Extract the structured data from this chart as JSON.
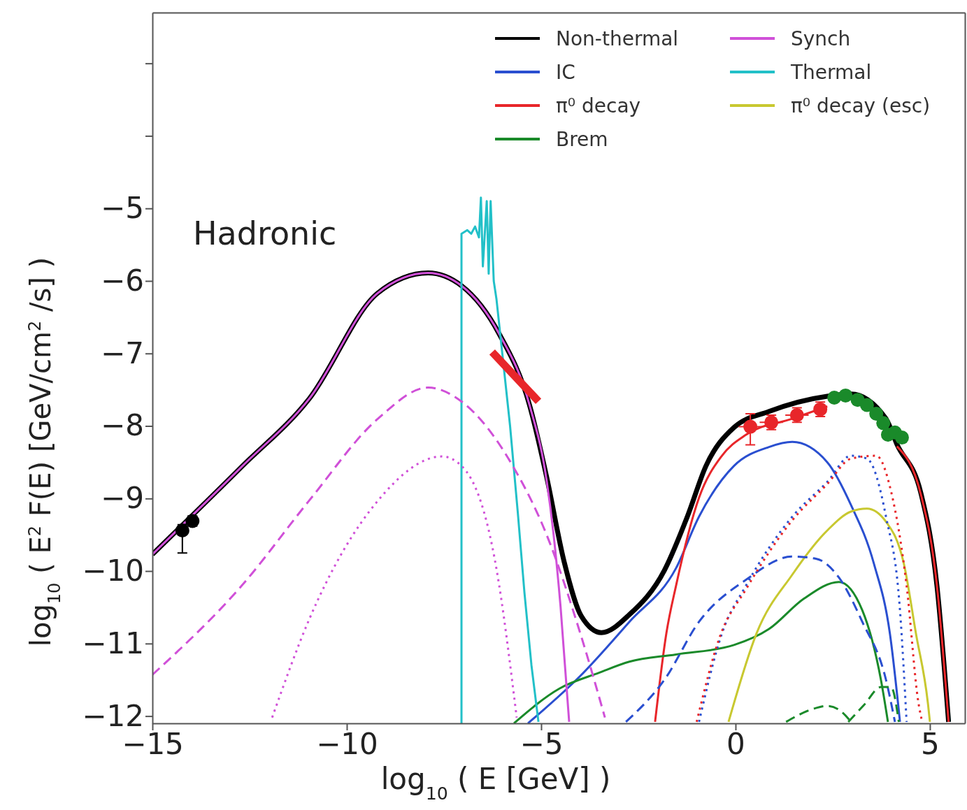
{
  "chart_data": {
    "type": "line",
    "xlabel": "log$_{10}$ ( E [GeV] )",
    "ylabel": "log$_{10}$ ( E$^{2}$ F(E) [GeV/cm$^{2}$ /s] )",
    "annotations": [
      "Hadronic"
    ],
    "xlim": [
      -15,
      5.9
    ],
    "ylim": [
      -12.1,
      -2.3
    ],
    "xticks": [
      -15,
      -10,
      -5,
      0,
      5
    ],
    "yticks": [
      -12,
      -11,
      -10,
      -9,
      -8,
      -7,
      -6,
      -5,
      {
        "value": -4,
        "label": null
      },
      {
        "value": -3,
        "label": null
      }
    ],
    "grid": false,
    "legend": "top right",
    "marker": "none",
    "line_style": "solid",
    "series": [
      {
        "name": "Non-thermal",
        "color": "#000000",
        "x": [
          -15,
          -12.7,
          -10.96,
          -9.21,
          -7.91,
          -7.04,
          -6.08,
          -5.3,
          -4.86,
          -4.41,
          -3.97,
          -3.45,
          -2.73,
          -1.83,
          -1.24,
          -0.76,
          -0.04,
          0.86,
          2.36,
          2.97,
          3.87,
          4.15,
          4.77,
          5.18,
          5.48
        ],
        "values": [
          -9.77,
          -8.56,
          -7.62,
          -6.17,
          -5.89,
          -6.07,
          -6.73,
          -7.71,
          -8.7,
          -9.87,
          -10.62,
          -10.85,
          -10.6,
          -9.99,
          -9.25,
          -8.55,
          -8.02,
          -7.8,
          -7.59,
          -7.56,
          -7.9,
          -8.25,
          -8.93,
          -10.2,
          -12.08
        ]
      },
      {
        "name": "IC",
        "color": "#2a4fd0",
        "x": [
          -5.34,
          -4,
          -2.73,
          -1.53,
          -0.94,
          -0.04,
          0.86,
          1.46,
          2.36,
          2.97,
          3.56,
          3.97,
          4.23
        ],
        "values": [
          -12.1,
          -11.45,
          -10.7,
          -9.96,
          -9.25,
          -8.55,
          -8.29,
          -8.22,
          -8.5,
          -9.09,
          -9.9,
          -10.86,
          -12.08
        ]
      },
      {
        "name": "π⁰ decay",
        "color": "#e8262a",
        "x": [
          -2.07,
          -1.78,
          -1.53,
          -0.94,
          -0.35,
          0.27,
          1.46,
          2.36,
          3.26,
          3.87,
          4.15,
          4.77,
          5.18,
          5.48
        ],
        "values": [
          -12.08,
          -10.86,
          -10.2,
          -8.99,
          -8.41,
          -8.12,
          -7.9,
          -7.73,
          null,
          null,
          -8.28,
          -8.95,
          -10.2,
          -12.08
        ]
      },
      {
        "name": "Brem",
        "color": "#1a8a2a",
        "x": [
          -5.7,
          -4.53,
          -3.5,
          -2.73,
          -1.53,
          -0.04,
          0.86,
          1.76,
          2.66,
          3.26,
          3.74,
          3.92
        ],
        "values": [
          -12.1,
          -11.62,
          -11.4,
          -11.25,
          -11.15,
          -11.02,
          -10.8,
          -10.38,
          -10.15,
          -10.54,
          -11.5,
          -12.08
        ]
      },
      {
        "name": "Synch",
        "color": "#d050d8",
        "x": [
          -15,
          -12.7,
          -10.96,
          -9.21,
          -7.91,
          -7.04,
          -6.08,
          -5.3,
          -4.86,
          -4.68,
          -4.5,
          -4.28
        ],
        "values": [
          -9.77,
          -8.56,
          -7.62,
          -6.17,
          -5.89,
          -6.07,
          -6.73,
          -7.71,
          -8.75,
          -9.5,
          -10.5,
          -12.08
        ]
      },
      {
        "name": "Thermal",
        "color": "#22c0c8",
        "x": [
          -7.05,
          -7.05,
          -6.9,
          -6.8,
          -6.7,
          -6.6,
          -6.55,
          -6.5,
          -6.4,
          -6.35,
          -6.3,
          -6.22,
          -6.15,
          -6,
          -5.8,
          -5.6,
          -5.43,
          -5.25,
          -5.07
        ],
        "values": [
          -12.1,
          -5.35,
          -5.3,
          -5.35,
          -5.25,
          -5.4,
          -4.85,
          -5.8,
          -4.9,
          -5.9,
          -4.9,
          -6,
          -6.25,
          -7,
          -8,
          -9.2,
          -10.3,
          -11.3,
          -12.08
        ]
      },
      {
        "name": "π⁰ decay (esc)",
        "color": "#c8c830",
        "x": [
          -0.18,
          0.54,
          1.46,
          2.36,
          2.97,
          3.38,
          3.87,
          4.33,
          4.64,
          4.95,
          5
        ],
        "values": [
          -12.08,
          -10.86,
          -10.05,
          -9.44,
          -9.18,
          -9.14,
          -9.32,
          -9.9,
          -10.86,
          -11.83,
          -12.08
        ]
      },
      {
        "color": "#d050d8",
        "line_style": "dashed",
        "x": [
          -15,
          -12.7,
          -10.97,
          -9.2,
          -7.91,
          -7.03,
          -5.72,
          -4.86,
          -3.97,
          -3.36
        ],
        "values": [
          -11.43,
          -10.2,
          -9.03,
          -7.9,
          -7.47,
          -7.67,
          -8.56,
          -9.5,
          -10.9,
          -12.02
        ]
      },
      {
        "color": "#d050d8",
        "line_style": "dotted",
        "x": [
          -11.92,
          -10.97,
          -9.2,
          -7.55,
          -7.03,
          -6.15,
          -5.63
        ],
        "values": [
          -12.02,
          -10.67,
          -9.03,
          -8.42,
          -8.56,
          -9.97,
          -12.02
        ]
      },
      {
        "color": "#2a4fd0",
        "line_style": "dashed",
        "x": [
          -2.82,
          -1.83,
          -0.94,
          0.27,
          1.46,
          2.07,
          2.66,
          3.26,
          3.87,
          4.1
        ],
        "values": [
          -12.08,
          -11.5,
          -10.7,
          -10.12,
          -9.8,
          -9.83,
          -10.09,
          -10.7,
          -11.5,
          -12.08
        ]
      },
      {
        "color": "#2a4fd0",
        "line_style": "dotted",
        "x": [
          -0.94,
          -0.35,
          0.27,
          1.46,
          2.36,
          2.97,
          3.38,
          3.87,
          4.23,
          4.4
        ],
        "values": [
          -12.08,
          -10.86,
          -10.2,
          -9.25,
          -8.77,
          -8.41,
          -8.45,
          -9.25,
          -10.54,
          -12.08
        ]
      },
      {
        "color": "#e8262a",
        "line_style": "dotted",
        "x": [
          -1,
          -0.4,
          0.27,
          1.46,
          2.36,
          2.97,
          3.62,
          4,
          4.4,
          4.7,
          4.8
        ],
        "values": [
          -12.08,
          -10.9,
          -10.25,
          -9.3,
          -8.8,
          -8.45,
          -8.41,
          -8.9,
          -10.2,
          -11.8,
          -12.08
        ]
      },
      {
        "color": "#1a8a2a",
        "line_style": "dashed",
        "x": [
          1.3,
          2,
          2.36,
          2.75,
          2.97
        ],
        "values": [
          -12.08,
          -11.9,
          -11.86,
          -11.95,
          -12.08
        ]
      },
      {
        "color": "#1a8a2a",
        "line_style": "dashed",
        "x": [
          2.9,
          3.3,
          3.74,
          4,
          4.2
        ],
        "values": [
          -12.08,
          -11.85,
          -11.6,
          -11.6,
          -12.08
        ]
      },
      {
        "color": "#e8262a",
        "x": [
          -6.26,
          -5.07
        ],
        "values": [
          -6.98,
          -7.66
        ]
      },
      {
        "type": "scatter",
        "color": "#000000",
        "marker": "circle",
        "x": [
          -14.23,
          -13.97
        ],
        "values": [
          -9.44,
          -9.31
        ],
        "errors": [
          [
            -9.75,
            -9.36
          ],
          0.07
        ]
      },
      {
        "type": "scatter",
        "color": "#e8262a",
        "marker": "circle",
        "x": [
          0.38,
          0.92,
          1.58,
          2.18
        ],
        "values": [
          -8.01,
          -7.95,
          -7.85,
          -7.77
        ],
        "errors": [
          [
            -8.26,
            -7.83
          ],
          0.1,
          0.1,
          0.1
        ],
        "xerrors": [
          0.3,
          0.3,
          0.3,
          null
        ]
      },
      {
        "type": "scatter",
        "color": "#1a8a2a",
        "marker": "circle",
        "x": [
          2.54,
          2.83,
          3.14,
          3.38,
          3.62,
          3.8,
          3.92,
          4.1,
          4.28
        ],
        "values": [
          -7.61,
          -7.58,
          -7.64,
          -7.71,
          -7.83,
          -7.96,
          -8.12,
          -8.09,
          -8.16
        ]
      }
    ]
  }
}
